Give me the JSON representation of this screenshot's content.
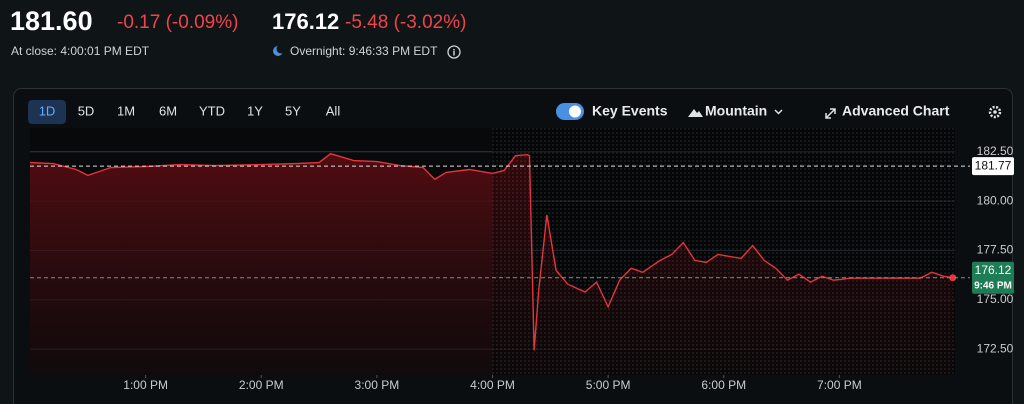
{
  "header": {
    "close_price": "181.60",
    "close_change": "-0.17 (-0.09%)",
    "close_label": "At close: 4:00:01 PM EDT",
    "overnight_price": "176.12",
    "overnight_change": "-5.48 (-3.02%)",
    "overnight_label": "Overnight: 9:46:33 PM EDT"
  },
  "toolbar": {
    "ranges": [
      "1D",
      "5D",
      "1M",
      "6M",
      "YTD",
      "1Y",
      "5Y",
      "All"
    ],
    "key_events": "Key Events",
    "chart_style": "Mountain",
    "advanced": "Advanced Chart"
  },
  "chart_data": {
    "type": "line",
    "color": "#e5343d",
    "x": [
      12.0,
      12.2,
      12.4,
      12.5,
      12.7,
      13.0,
      13.3,
      13.6,
      14.0,
      14.3,
      14.5,
      14.6,
      14.8,
      15.0,
      15.2,
      15.4,
      15.5,
      15.6,
      15.8,
      16.0,
      16.1,
      16.2,
      16.3,
      16.32,
      16.36,
      16.4,
      16.47,
      16.55,
      16.65,
      16.8,
      16.9,
      17.0,
      17.1,
      17.2,
      17.3,
      17.45,
      17.55,
      17.65,
      17.75,
      17.85,
      17.95,
      18.05,
      18.15,
      18.25,
      18.35,
      18.45,
      18.55,
      18.65,
      18.75,
      18.85,
      18.95,
      19.1,
      19.3,
      19.5,
      19.7,
      19.8,
      19.9,
      19.98
    ],
    "values": [
      181.95,
      181.9,
      181.6,
      181.3,
      181.7,
      181.75,
      181.85,
      181.8,
      181.85,
      181.9,
      181.95,
      182.4,
      182.05,
      182.0,
      181.8,
      181.7,
      181.1,
      181.45,
      181.6,
      181.4,
      181.55,
      182.3,
      182.35,
      182.3,
      172.45,
      175.5,
      179.3,
      176.5,
      175.8,
      175.4,
      175.9,
      174.65,
      176.0,
      176.6,
      176.4,
      177.0,
      177.3,
      177.9,
      177.0,
      176.9,
      177.3,
      177.2,
      177.1,
      177.75,
      177.0,
      176.6,
      176.0,
      176.3,
      175.9,
      176.2,
      176.0,
      176.1,
      176.1,
      176.1,
      176.1,
      176.4,
      176.2,
      176.12
    ],
    "xlim": [
      12,
      20
    ],
    "xticks": [
      {
        "value": 13,
        "label": "1:00 PM"
      },
      {
        "value": 14,
        "label": "2:00 PM"
      },
      {
        "value": 15,
        "label": "3:00 PM"
      },
      {
        "value": 16,
        "label": "4:00 PM"
      },
      {
        "value": 17,
        "label": "5:00 PM"
      },
      {
        "value": 18,
        "label": "6:00 PM"
      },
      {
        "value": 19,
        "label": "7:00 PM"
      }
    ],
    "ylim": [
      171.2,
      183.7
    ],
    "yticks": [
      {
        "value": 172.5,
        "label": "172.50"
      },
      {
        "value": 175,
        "label": "175.00"
      },
      {
        "value": 177.5,
        "label": "177.50"
      },
      {
        "value": 180,
        "label": "180.00"
      },
      {
        "value": 182.5,
        "label": "182.50"
      }
    ],
    "grid": true,
    "previous_close": 181.77,
    "last_price": 176.12,
    "last_time": "9:46 PM"
  }
}
